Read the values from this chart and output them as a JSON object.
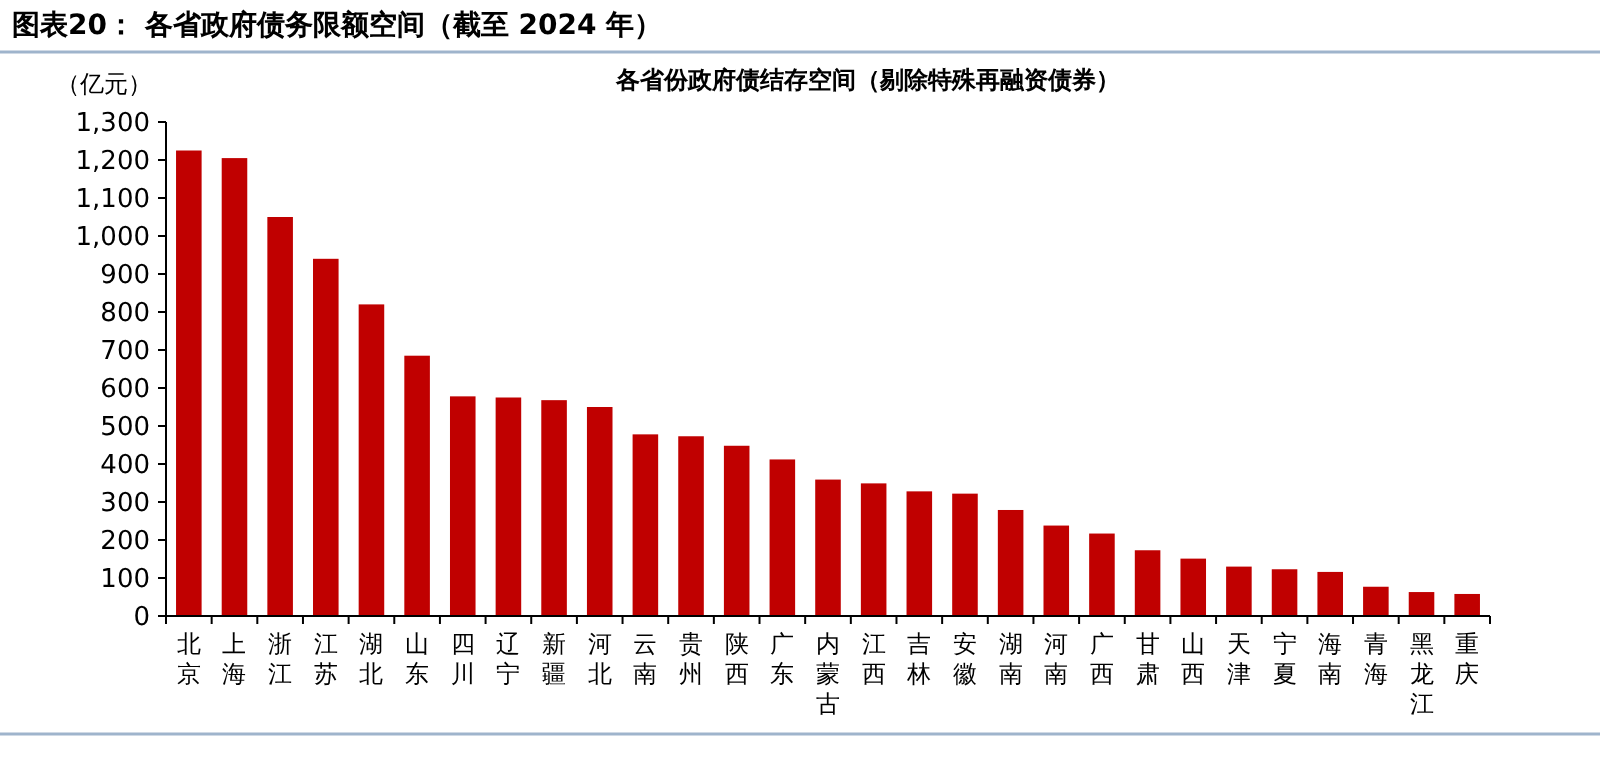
{
  "chart_data": {
    "type": "bar",
    "title": "图表20： 各省政府债务限额空间（截至 2024 年）",
    "subtitle": "各省份政府债结存空间（剔除特殊再融资债券）",
    "ylabel": "（亿元）",
    "categories": [
      "北京",
      "上海",
      "浙江",
      "江苏",
      "湖北",
      "山东",
      "四川",
      "辽宁",
      "新疆",
      "河北",
      "云南",
      "贵州",
      "陕西",
      "广东",
      "内蒙古",
      "江西",
      "吉林",
      "安徽",
      "湖南",
      "河南",
      "广西",
      "甘肃",
      "山西",
      "天津",
      "宁夏",
      "海南",
      "青海",
      "黑龙江",
      "重庆"
    ],
    "values": [
      1225,
      1205,
      1050,
      940,
      820,
      685,
      578,
      575,
      568,
      550,
      478,
      473,
      448,
      412,
      359,
      349,
      328,
      322,
      279,
      238,
      217,
      173,
      151,
      130,
      123,
      116,
      77,
      63,
      58
    ],
    "color": "#c00000",
    "ylim": [
      0,
      1300
    ],
    "yticks": [
      0,
      100,
      200,
      300,
      400,
      500,
      600,
      700,
      800,
      900,
      {
        "value": 1000,
        "label": "1,000"
      },
      {
        "value": 1100,
        "label": "1,100"
      },
      {
        "value": 1200,
        "label": "1,200"
      },
      {
        "value": 1300,
        "label": "1,300"
      }
    ]
  }
}
